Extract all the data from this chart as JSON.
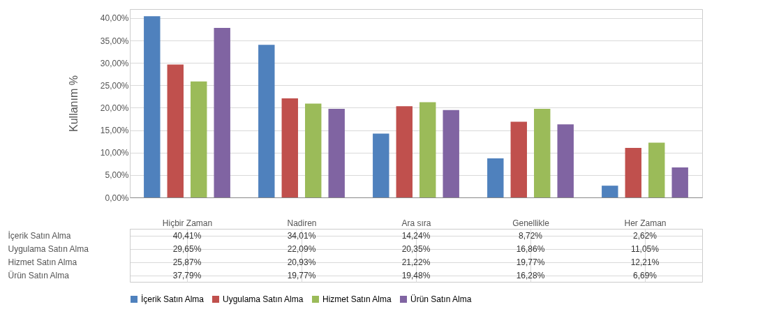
{
  "chart_data": {
    "type": "bar",
    "ylabel": "Kullanım %",
    "categories": [
      "Hiçbir Zaman",
      "Nadiren",
      "Ara sıra",
      "Genellikle",
      "Her Zaman"
    ],
    "series": [
      {
        "name": "İçerik Satın Alma",
        "color": "#4f81bd",
        "values": [
          40.41,
          34.01,
          14.24,
          8.72,
          2.62
        ],
        "value_labels": [
          "40,41%",
          "34,01%",
          "14,24%",
          "8,72%",
          "2,62%"
        ]
      },
      {
        "name": "Uygulama Satın Alma",
        "color": "#c0504d",
        "values": [
          29.65,
          22.09,
          20.35,
          16.86,
          11.05
        ],
        "value_labels": [
          "29,65%",
          "22,09%",
          "20,35%",
          "16,86%",
          "11,05%"
        ]
      },
      {
        "name": "Hizmet Satın Alma",
        "color": "#9bbb59",
        "values": [
          25.87,
          20.93,
          21.22,
          19.77,
          12.21
        ],
        "value_labels": [
          "25,87%",
          "20,93%",
          "21,22%",
          "19,77%",
          "12,21%"
        ]
      },
      {
        "name": "Ürün Satın Alma",
        "color": "#8064a2",
        "values": [
          37.79,
          19.77,
          19.48,
          16.28,
          6.69
        ],
        "value_labels": [
          "37,79%",
          "19,77%",
          "19,48%",
          "16,28%",
          "6,69%"
        ]
      }
    ],
    "ylim": [
      0,
      42
    ],
    "yticks": [
      {
        "value": 0,
        "label": "0,00%"
      },
      {
        "value": 5,
        "label": "5,00%"
      },
      {
        "value": 10,
        "label": "10,00%"
      },
      {
        "value": 15,
        "label": "15,00%"
      },
      {
        "value": 20,
        "label": "20,00%"
      },
      {
        "value": 25,
        "label": "25,00%"
      },
      {
        "value": 30,
        "label": "30,00%"
      },
      {
        "value": 35,
        "label": "35,00%"
      },
      {
        "value": 40,
        "label": "40,00%"
      }
    ],
    "grid": "y",
    "legend": "bottom"
  }
}
